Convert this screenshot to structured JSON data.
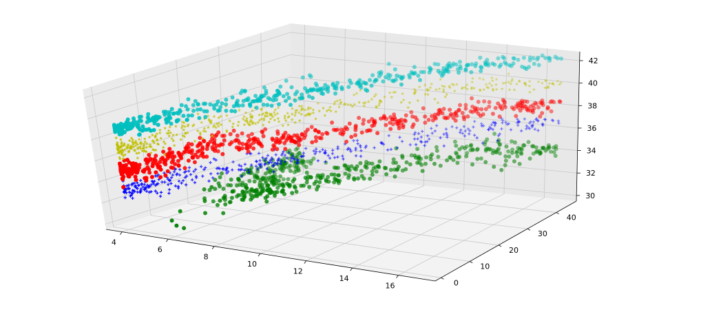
{
  "chart_data": {
    "type": "scatter",
    "projection": "3d",
    "title": "",
    "xlabel": "",
    "ylabel": "",
    "zlabel": "",
    "xlim": [
      3.3,
      17.6
    ],
    "ylim": [
      -2,
      47
    ],
    "zlim": [
      29.5,
      42.8
    ],
    "xticks": [
      4,
      6,
      8,
      10,
      12,
      14,
      16
    ],
    "yticks": [
      0,
      10,
      20,
      30,
      40
    ],
    "zticks": [
      30,
      32,
      34,
      36,
      38,
      40,
      42
    ],
    "xtick_labels": [
      "4",
      "6",
      "8",
      "10",
      "12",
      "14",
      "16"
    ],
    "ytick_labels": [
      "0",
      "10",
      "20",
      "30",
      "40"
    ],
    "ztick_labels": [
      "30",
      "32",
      "34",
      "36",
      "38",
      "40",
      "42"
    ],
    "grid": true,
    "legend": "none",
    "series": [
      {
        "color": "#008000",
        "marker": "circle",
        "approx_points": 1400,
        "x_range": [
          4,
          17
        ],
        "y_range": [
          0,
          45
        ],
        "trend_points": [
          [
            4,
            0,
            30.2
          ],
          [
            4,
            20,
            30.6
          ],
          [
            4,
            40,
            31.0
          ],
          [
            6,
            20,
            31.1
          ],
          [
            8,
            25,
            32.1
          ],
          [
            10,
            30,
            33.0
          ],
          [
            13,
            40,
            33.9
          ],
          [
            17,
            45,
            34.3
          ]
        ],
        "z_spread": 1.4
      },
      {
        "color": "#0000ff",
        "marker": "plus",
        "approx_points": 1100,
        "x_range": [
          4,
          17
        ],
        "y_range": [
          0,
          45
        ],
        "trend_points": [
          [
            4,
            0,
            33.2
          ],
          [
            6,
            20,
            33.6
          ],
          [
            8,
            25,
            34.3
          ],
          [
            11,
            35,
            35.3
          ],
          [
            14,
            40,
            36.2
          ],
          [
            17,
            45,
            36.8
          ]
        ],
        "z_spread": 0.8
      },
      {
        "color": "#ff0000",
        "marker": "circle",
        "approx_points": 1500,
        "x_range": [
          4,
          17
        ],
        "y_range": [
          0,
          45
        ],
        "trend_points": [
          [
            4,
            0,
            35.0
          ],
          [
            6,
            20,
            35.6
          ],
          [
            8,
            25,
            36.1
          ],
          [
            11,
            35,
            37.0
          ],
          [
            14,
            40,
            37.8
          ],
          [
            17,
            45,
            38.3
          ]
        ],
        "z_spread": 0.9
      },
      {
        "color": "#bfbf00",
        "marker": "star",
        "approx_points": 1300,
        "x_range": [
          4,
          17
        ],
        "y_range": [
          0,
          45
        ],
        "trend_points": [
          [
            4,
            0,
            37.1
          ],
          [
            6,
            20,
            37.7
          ],
          [
            8,
            25,
            38.3
          ],
          [
            11,
            35,
            39.2
          ],
          [
            14,
            40,
            40.0
          ],
          [
            17,
            45,
            40.3
          ]
        ],
        "z_spread": 0.8
      },
      {
        "color": "#00bfbf",
        "marker": "circle",
        "approx_points": 1200,
        "x_range": [
          4,
          17
        ],
        "y_range": [
          0,
          45
        ],
        "trend_points": [
          [
            4,
            0,
            38.9
          ],
          [
            6,
            20,
            39.4
          ],
          [
            8,
            25,
            40.0
          ],
          [
            11,
            35,
            41.0
          ],
          [
            14,
            40,
            41.9
          ],
          [
            17,
            45,
            42.2
          ]
        ],
        "z_spread": 0.6
      }
    ]
  }
}
